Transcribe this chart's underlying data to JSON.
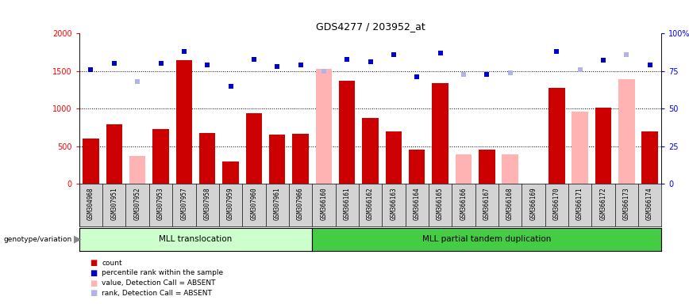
{
  "title": "GDS4277 / 203952_at",
  "samples": [
    "GSM304968",
    "GSM307951",
    "GSM307952",
    "GSM307953",
    "GSM307957",
    "GSM307958",
    "GSM307959",
    "GSM307960",
    "GSM307961",
    "GSM307966",
    "GSM366160",
    "GSM366161",
    "GSM366162",
    "GSM366163",
    "GSM366164",
    "GSM366165",
    "GSM366166",
    "GSM366167",
    "GSM366168",
    "GSM366169",
    "GSM366170",
    "GSM366171",
    "GSM366172",
    "GSM366173",
    "GSM366174"
  ],
  "count_values": [
    600,
    790,
    null,
    730,
    1650,
    680,
    295,
    940,
    660,
    670,
    null,
    1370,
    880,
    700,
    460,
    1340,
    null,
    460,
    null,
    null,
    1280,
    null,
    1010,
    null,
    700
  ],
  "absent_value_values": [
    null,
    null,
    370,
    null,
    null,
    null,
    null,
    null,
    null,
    null,
    1530,
    null,
    null,
    null,
    null,
    null,
    395,
    null,
    395,
    null,
    null,
    960,
    null,
    1390,
    null
  ],
  "percentile_rank_values": [
    76,
    80,
    null,
    80,
    88,
    79,
    65,
    83,
    78,
    79,
    null,
    83,
    81,
    86,
    71,
    87,
    null,
    73,
    null,
    null,
    88,
    null,
    82,
    null,
    79
  ],
  "absent_rank_values": [
    null,
    null,
    68,
    null,
    null,
    null,
    null,
    null,
    null,
    null,
    75,
    null,
    null,
    null,
    null,
    null,
    73,
    null,
    74,
    null,
    null,
    76,
    null,
    86,
    null
  ],
  "group1_label": "MLL translocation",
  "group2_label": "MLL partial tandem duplication",
  "group1_count": 10,
  "group2_count": 15,
  "ylim_left": [
    0,
    2000
  ],
  "ylim_right": [
    0,
    100
  ],
  "yticks_left": [
    0,
    500,
    1000,
    1500,
    2000
  ],
  "yticks_right": [
    0,
    25,
    50,
    75,
    100
  ],
  "ytick_labels_right": [
    "0",
    "25",
    "50",
    "75",
    "100%"
  ],
  "bar_color_count": "#cc0000",
  "bar_color_absent_value": "#ffb3b3",
  "dot_color_rank": "#0000cc",
  "dot_color_absent_rank": "#b3b3e6",
  "legend_items": [
    {
      "label": "count",
      "color": "#cc0000"
    },
    {
      "label": "percentile rank within the sample",
      "color": "#0000cc"
    },
    {
      "label": "value, Detection Call = ABSENT",
      "color": "#ffb3b3"
    },
    {
      "label": "rank, Detection Call = ABSENT",
      "color": "#b3b3e6"
    }
  ],
  "background_color": "#ffffff",
  "tick_area_color": "#d3d3d3",
  "group1_bg": "#ccffcc",
  "group2_bg": "#44cc44"
}
